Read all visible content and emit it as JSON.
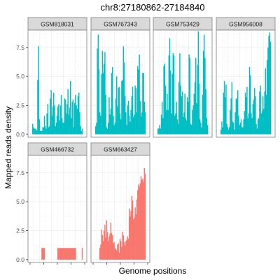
{
  "chart_data": {
    "type": "area",
    "title": "chr8:27180862-27184840",
    "xlabel": "Genome positions",
    "ylabel": "Mapped reads density",
    "y_ticks": [
      "0.0",
      "2.5",
      "5.0",
      "7.5"
    ],
    "ylim": [
      -0.25,
      9.0
    ],
    "grid": true,
    "facet_layout": "4 columns x 2 rows",
    "colors": {
      "group_a": "#00BFC4",
      "group_b": "#F8766D",
      "strip_bg": "#D9D9D9"
    },
    "panels": [
      {
        "label": "GSM818031",
        "color": "#00BFC4",
        "values": [
          0.9,
          0.6,
          0.5,
          0.5,
          0.3,
          0.4,
          4.7,
          7.6,
          1.3,
          0.3,
          0.3,
          0.3,
          0.6,
          0.6,
          1.6,
          0.7,
          0.5,
          1.8,
          2.6,
          0.6,
          0.7,
          3.1,
          3.8,
          1.6,
          2.4,
          3.6,
          2.5,
          0.7,
          1.0,
          1.6,
          2.4,
          2.6,
          1.2,
          2.5,
          3.4,
          1.4,
          1.0,
          1.0,
          3.1,
          3.0,
          1.8,
          2.6,
          3.9,
          1.7,
          2.3,
          4.6,
          1.4,
          2.8,
          3.0,
          0.6,
          2.7,
          3.4,
          2.5,
          2.2,
          3.3,
          3.6,
          1.9,
          0.7,
          0.3,
          0.5
        ]
      },
      {
        "label": "GSM767343",
        "color": "#00BFC4",
        "values": [
          0.7,
          1.0,
          7.4,
          8.6,
          5.6,
          1.9,
          1.6,
          5.2,
          7.2,
          5.3,
          6.1,
          7.1,
          3.4,
          0.6,
          0.5,
          1.0,
          3.2,
          1.7,
          2.2,
          5.3,
          5.8,
          1.6,
          0.8,
          1.0,
          3.1,
          5.0,
          2.4,
          4.0,
          4.1,
          1.8,
          1.3,
          4.6,
          4.7,
          7.6,
          6.2,
          3.3,
          1.9,
          0.8,
          2.5,
          2.9,
          1.6,
          1.1,
          2.1,
          3.3,
          4.1,
          1.5,
          1.7,
          4.2,
          4.0,
          1.9,
          5.9,
          5.6,
          6.9,
          2.9,
          1.5,
          1.9,
          5.3,
          5.3,
          2.8,
          1.9
        ]
      },
      {
        "label": "GSM753429",
        "color": "#00BFC4",
        "values": [
          0.5,
          0.5,
          0.8,
          0.5,
          1.7,
          2.8,
          1.4,
          5.9,
          6.1,
          4.2,
          2.1,
          3.5,
          2.1,
          6.8,
          8.3,
          5.5,
          1.8,
          5.2,
          7.0,
          6.8,
          1.6,
          1.8,
          2.8,
          1.3,
          0.9,
          4.5,
          7.0,
          4.2,
          3.3,
          3.7,
          1.5,
          1.9,
          3.5,
          1.4,
          1.2,
          3.2,
          2.8,
          6.9,
          6.6,
          0.9,
          0.8,
          2.1,
          2.5,
          3.5,
          4.5,
          6.6,
          2.7,
          6.0,
          8.9,
          4.4,
          1.3,
          1.0,
          0.6,
          3.4,
          7.2,
          8.6,
          6.6,
          3.9,
          1.4,
          0.8
        ]
      },
      {
        "label": "GSM956008",
        "color": "#00BFC4",
        "values": [
          0.4,
          1.1,
          0.6,
          3.6,
          4.6,
          3.2,
          4.3,
          0.9,
          0.6,
          0.4,
          0.6,
          2.1,
          3.1,
          4.5,
          1.1,
          1.0,
          0.4,
          1.9,
          3.1,
          3.0,
          3.8,
          1.6,
          0.8,
          1.0,
          1.3,
          0.6,
          0.6,
          1.3,
          2.0,
          3.6,
          3.2,
          4.1,
          1.4,
          1.8,
          5.8,
          5.1,
          1.8,
          1.4,
          2.6,
          3.0,
          4.0,
          3.3,
          0.9,
          0.5,
          1.3,
          1.4,
          3.7,
          4.2,
          1.8,
          2.0,
          3.3,
          2.2,
          3.7,
          5.7,
          3.4,
          6.4,
          7.5,
          8.5,
          8.8,
          8.0
        ]
      },
      {
        "label": "GSM466732",
        "color": "#F8766D",
        "values": [
          0.0,
          0.0,
          0.0,
          0.0,
          0.0,
          0.0,
          0.0,
          0.0,
          0.0,
          0.0,
          0.0,
          1.0,
          1.0,
          1.0,
          1.0,
          0.0,
          0.0,
          0.0,
          0.0,
          0.0,
          0.0,
          0.0,
          0.0,
          0.0,
          0.0,
          0.0,
          0.0,
          0.0,
          0.0,
          0.0,
          1.0,
          1.0,
          1.0,
          1.0,
          1.0,
          1.0,
          1.0,
          1.0,
          1.0,
          1.0,
          1.0,
          1.0,
          1.0,
          1.0,
          1.0,
          1.0,
          1.0,
          1.0,
          1.0,
          1.0,
          1.0,
          1.0,
          0.0,
          0.0,
          0.0,
          0.0,
          0.0,
          0.0,
          0.0,
          1.0
        ]
      },
      {
        "label": "GSM663427",
        "color": "#F8766D",
        "values": [
          0.0,
          0.0,
          0.0,
          0.0,
          0.0,
          1.0,
          1.3,
          2.6,
          2.1,
          1.6,
          2.5,
          3.0,
          1.9,
          3.4,
          2.4,
          1.6,
          2.0,
          2.2,
          3.2,
          2.3,
          2.1,
          1.4,
          1.5,
          1.0,
          0.9,
          0.8,
          1.3,
          1.4,
          0.6,
          1.8,
          1.6,
          1.1,
          2.4,
          2.1,
          1.5,
          1.2,
          1.6,
          1.7,
          2.0,
          1.8,
          4.4,
          3.7,
          4.2,
          5.5,
          5.1,
          3.5,
          3.6,
          4.5,
          3.9,
          5.2,
          6.0,
          6.5,
          6.3,
          6.6,
          7.2,
          6.9,
          7.0,
          6.7,
          7.9,
          7.4
        ]
      }
    ]
  }
}
